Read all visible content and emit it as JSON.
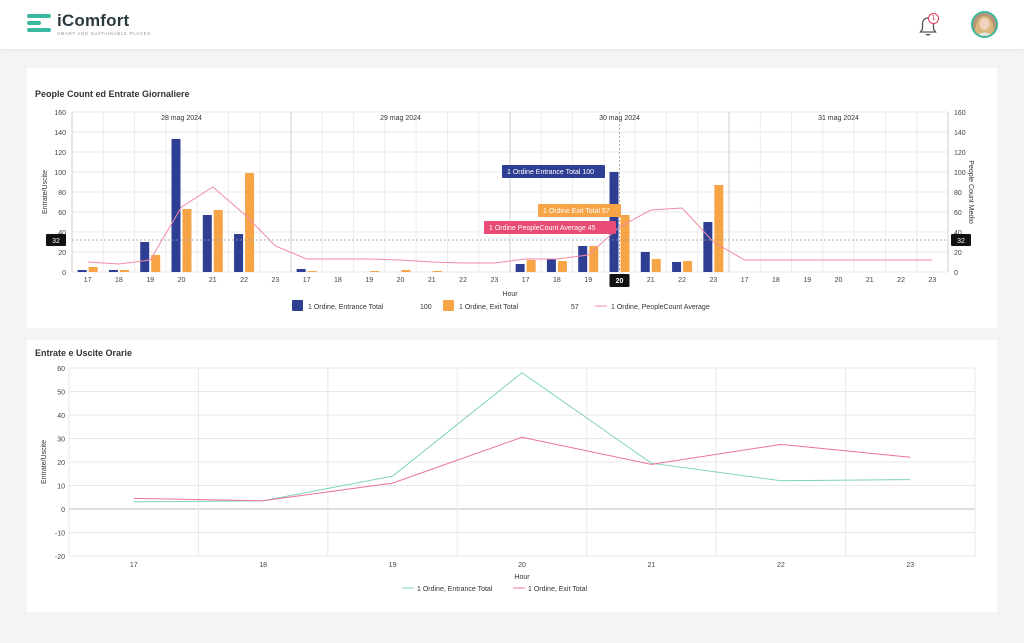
{
  "app": {
    "name": "iComfort",
    "tagline": "SMART AND SUSTAINABLE PLACES",
    "notifications": "1",
    "colors": {
      "brand": "#3db8a0",
      "badge": "#e23b5a"
    }
  },
  "panel1": {
    "title": "People Count ed Entrate Giornaliere"
  },
  "panel2": {
    "title": "Entrate e Uscite Orarie"
  },
  "chart_data": [
    {
      "type": "bar",
      "title": "People Count ed Entrate Giornaliere",
      "xlabel": "Hour",
      "ylabel": "Entrate/Uscite",
      "y2label": "People Count Medio",
      "ylim": [
        0,
        160
      ],
      "y2lim": [
        0,
        160
      ],
      "yticks": [
        0,
        20,
        40,
        60,
        80,
        100,
        120,
        140,
        160
      ],
      "categories": [
        "17",
        "18",
        "19",
        "20",
        "21",
        "22",
        "23",
        "17",
        "18",
        "19",
        "20",
        "21",
        "22",
        "23",
        "17",
        "18",
        "19",
        "20",
        "21",
        "22",
        "23",
        "17",
        "18",
        "19",
        "20",
        "21",
        "22",
        "23"
      ],
      "day_groups": [
        "28 mag 2024",
        "29 mag 2024",
        "30 mag 2024",
        "31 mag 2024"
      ],
      "series": [
        {
          "name": "1 Ordine, Entrance Total",
          "type": "bar",
          "color": "#2e3f93",
          "values": [
            2,
            2,
            30,
            133,
            57,
            38,
            0,
            3,
            0,
            0,
            0,
            0,
            0,
            0,
            8,
            13,
            26,
            100,
            20,
            10,
            50,
            0,
            0,
            0,
            0,
            0,
            0,
            0
          ]
        },
        {
          "name": "1 Ordine, Exit Total",
          "type": "bar",
          "color": "#f7a447",
          "values": [
            5,
            2,
            17,
            63,
            62,
            99,
            0,
            1,
            0,
            1,
            2,
            1,
            0,
            0,
            12,
            11,
            26,
            57,
            13,
            11,
            87,
            0,
            0,
            0,
            0,
            0,
            0,
            0
          ]
        },
        {
          "name": "1 Ordine, PeopleCount Average",
          "type": "line",
          "axis": "right",
          "color": "#f48aa8",
          "values": [
            10,
            8,
            12,
            65,
            85,
            58,
            26,
            13,
            13,
            13,
            12,
            10,
            9,
            9,
            13,
            13,
            17,
            45,
            62,
            64,
            30,
            12,
            12,
            12,
            12,
            12,
            12,
            12
          ]
        }
      ],
      "crosshair": {
        "category": "20",
        "y": "32"
      },
      "tooltips": [
        {
          "text": "1 Ordine Entrance Total 100",
          "color": "#2e3f93"
        },
        {
          "text": "1 Ordine Exit Total 57",
          "color": "#f7a447"
        },
        {
          "text": "1 Ordine PeopleCount Average 45",
          "color": "#e84c76"
        }
      ],
      "legend": [
        {
          "name": "1 Ordine, Entrance Total",
          "value": "100"
        },
        {
          "name": "1 Ordine, Exit Total",
          "value": "57"
        },
        {
          "name": "1 Ordine, PeopleCount Average",
          "value": ""
        }
      ],
      "legend_position": "bottom",
      "grid": true
    },
    {
      "type": "line",
      "title": "Entrate e Uscite Orarie",
      "xlabel": "Hour",
      "ylabel": "Entrate/Uscite",
      "ylim": [
        -20,
        60
      ],
      "yticks": [
        -20,
        -10,
        0,
        10,
        20,
        30,
        40,
        50,
        60
      ],
      "categories": [
        "17",
        "18",
        "19",
        "20",
        "21",
        "22",
        "23"
      ],
      "series": [
        {
          "name": "1 Ordine, Entrance Total",
          "color": "#7fd3b8",
          "values": [
            3,
            3.5,
            14,
            58,
            19.5,
            12,
            12.5
          ]
        },
        {
          "name": "1 Ordine, Exit Total",
          "color": "#ec7393",
          "values": [
            4.5,
            3.5,
            11,
            30.5,
            19,
            27.5,
            22
          ]
        }
      ],
      "legend_position": "bottom",
      "grid": true
    }
  ]
}
